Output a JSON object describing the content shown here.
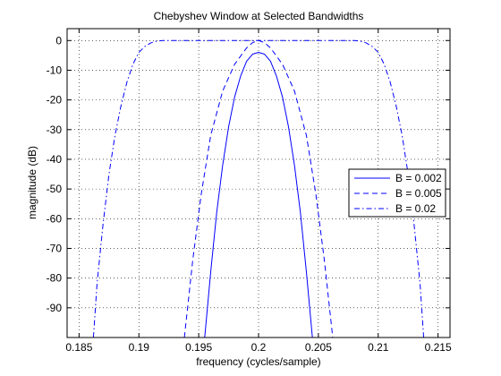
{
  "chart_data": {
    "type": "line",
    "title": "Chebyshev Window at Selected Bandwidths",
    "xlabel": "frequency (cycles/sample)",
    "ylabel": "magnitude (dB)",
    "xlim": [
      0.184,
      0.216
    ],
    "ylim": [
      -100,
      4
    ],
    "xticks": [
      0.185,
      0.19,
      0.195,
      0.2,
      0.205,
      0.21,
      0.215
    ],
    "xtick_labels": [
      "0.185",
      "0.19",
      "0.195",
      "0.2",
      "0.205",
      "0.21",
      "0.215"
    ],
    "yticks": [
      0,
      -10,
      -20,
      -30,
      -40,
      -50,
      -60,
      -70,
      -80,
      -90
    ],
    "ytick_labels": [
      "0",
      "-10",
      "-20",
      "-30",
      "-40",
      "-50",
      "-60",
      "-70",
      "-80",
      "-90"
    ],
    "grid": true,
    "legend_position": "center-right",
    "line_color": "#0000ff",
    "series": [
      {
        "name": "B = 0.002",
        "style": "solid",
        "x": [
          0.1955,
          0.196,
          0.1965,
          0.197,
          0.1975,
          0.198,
          0.1985,
          0.199,
          0.1995,
          0.2,
          0.2005,
          0.201,
          0.2015,
          0.202,
          0.2025,
          0.203,
          0.2035,
          0.204,
          0.2045
        ],
        "y": [
          -100,
          -78,
          -58,
          -42,
          -29,
          -19,
          -12,
          -7,
          -4.6,
          -4,
          -4.6,
          -7,
          -12,
          -19,
          -29,
          -42,
          -58,
          -78,
          -100
        ]
      },
      {
        "name": "B = 0.005",
        "style": "dashed",
        "x": [
          0.1938,
          0.1945,
          0.1952,
          0.196,
          0.197,
          0.198,
          0.199,
          0.1995,
          0.2,
          0.2005,
          0.201,
          0.202,
          0.203,
          0.204,
          0.2048,
          0.2055,
          0.2062
        ],
        "y": [
          -100,
          -74,
          -52,
          -32,
          -17,
          -8,
          -2.5,
          -0.7,
          0,
          -0.7,
          -2.5,
          -8,
          -17,
          -32,
          -52,
          -74,
          -100
        ]
      },
      {
        "name": "B = 0.02",
        "style": "dashdot",
        "x": [
          0.1862,
          0.1865,
          0.187,
          0.1875,
          0.188,
          0.1885,
          0.189,
          0.1895,
          0.19,
          0.1905,
          0.191,
          0.1915,
          0.192,
          0.193,
          0.2,
          0.207,
          0.208,
          0.2085,
          0.209,
          0.2095,
          0.21,
          0.2105,
          0.211,
          0.2115,
          0.212,
          0.2125,
          0.213,
          0.2135,
          0.2138
        ],
        "y": [
          -100,
          -82,
          -62,
          -45,
          -32,
          -22,
          -14,
          -8,
          -4,
          -2,
          -0.8,
          -0.2,
          0,
          0,
          0,
          0,
          0,
          -0.2,
          -0.8,
          -2,
          -4,
          -8,
          -14,
          -22,
          -32,
          -45,
          -62,
          -82,
          -100
        ]
      }
    ]
  }
}
